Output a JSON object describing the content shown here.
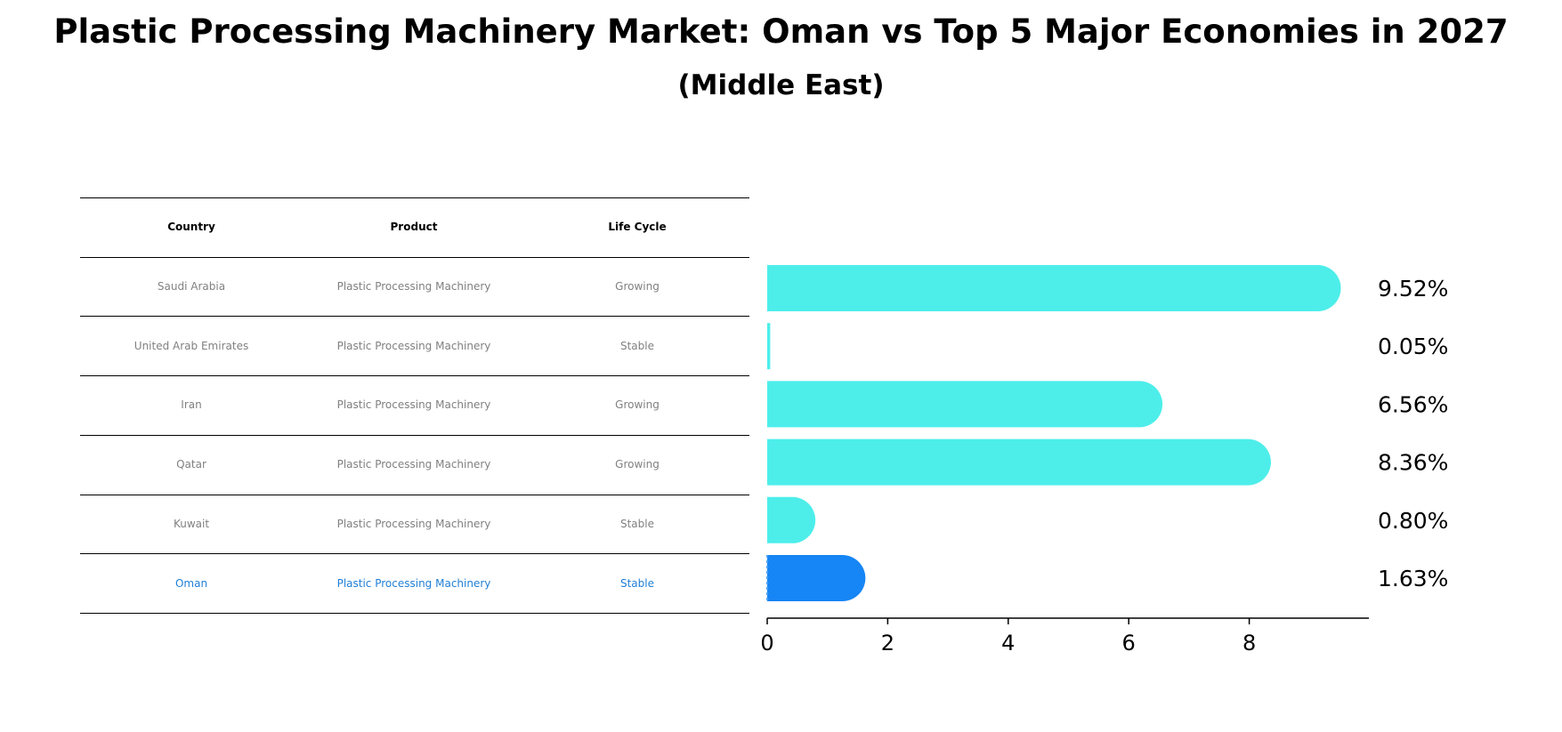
{
  "title": "Plastic Processing Machinery Market: Oman vs Top 5 Major Economies in 2027",
  "subtitle": "(Middle East)",
  "table": {
    "headers": [
      "Country",
      "Product",
      "Life Cycle"
    ],
    "rows": [
      {
        "country": "Saudi Arabia",
        "product": "Plastic Processing Machinery",
        "life_cycle": "Growing"
      },
      {
        "country": "United Arab Emirates",
        "product": "Plastic Processing Machinery",
        "life_cycle": "Stable"
      },
      {
        "country": "Iran",
        "product": "Plastic Processing Machinery",
        "life_cycle": "Growing"
      },
      {
        "country": "Qatar",
        "product": "Plastic Processing Machinery",
        "life_cycle": "Growing"
      },
      {
        "country": "Kuwait",
        "product": "Plastic Processing Machinery",
        "life_cycle": "Stable"
      },
      {
        "country": "Oman",
        "product": "Plastic Processing Machinery",
        "life_cycle": "Stable"
      }
    ]
  },
  "chart_data": {
    "type": "bar",
    "orientation": "horizontal",
    "title": "Plastic Processing Machinery Market: Oman vs Top 5 Major Economies in 2027",
    "subtitle": "(Middle East)",
    "categories": [
      "Saudi Arabia",
      "United Arab Emirates",
      "Iran",
      "Qatar",
      "Kuwait",
      "Oman"
    ],
    "values": [
      9.52,
      0.05,
      6.56,
      8.36,
      0.8,
      1.63
    ],
    "value_labels": [
      "9.52%",
      "0.05%",
      "6.56%",
      "8.36%",
      "0.80%",
      "1.63%"
    ],
    "highlight": "Oman",
    "xlim": [
      0,
      10
    ],
    "xticks": [
      0,
      2,
      4,
      6,
      8
    ],
    "xtick_labels": [
      "0",
      "2",
      "4",
      "6",
      "8"
    ],
    "colors": {
      "default": "#4deeea",
      "highlight": "#1685f5",
      "highlight_text": "#1f7fd6"
    }
  }
}
